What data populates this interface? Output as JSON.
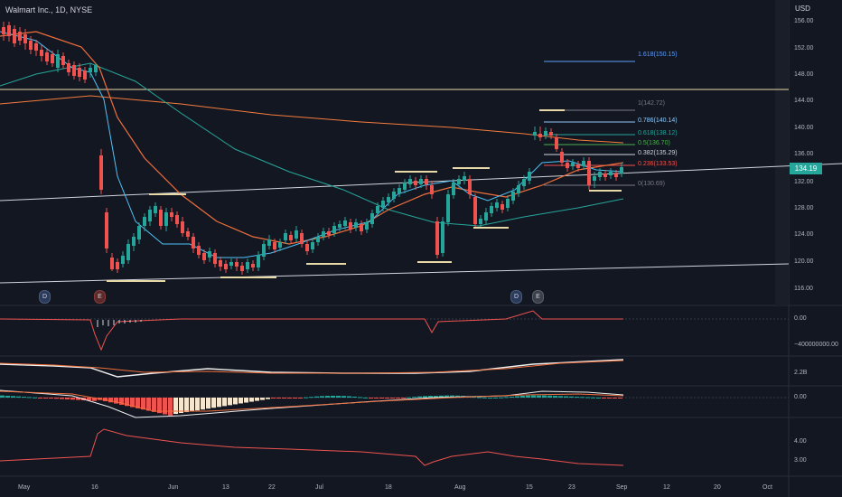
{
  "header": {
    "title": "Walmart Inc., 1D, NYSE",
    "currency": "USD"
  },
  "last_price": "134.19",
  "price_axis": {
    "labels": [
      "156.00",
      "152.00",
      "148.00",
      "144.00",
      "140.00",
      "136.00",
      "132.00",
      "128.00",
      "124.00",
      "120.00",
      "116.00"
    ],
    "values": [
      156,
      152,
      148,
      144,
      140,
      136,
      132,
      128,
      124,
      120,
      116
    ]
  },
  "time_axis": {
    "labels": [
      "May",
      "16",
      "Jun",
      "13",
      "22",
      "Jul",
      "18",
      "Aug",
      "15",
      "23",
      "Sep",
      "12",
      "20",
      "Oct"
    ]
  },
  "fib_levels": [
    {
      "label": "1.618(150.15)",
      "color": "#5b9cf6"
    },
    {
      "label": "1(142.72)",
      "color": "#787b86"
    },
    {
      "label": "0.786(140.14)",
      "color": "#90caf9"
    },
    {
      "label": "0.618(138.12)",
      "color": "#26a69a"
    },
    {
      "label": "0.5(136.70)",
      "color": "#4caf50"
    },
    {
      "label": "0.382(135.29)",
      "color": "#d1d4dc"
    },
    {
      "label": "0.236(133.53)",
      "color": "#ef5350"
    },
    {
      "label": "0(130.69)",
      "color": "#787b86"
    }
  ],
  "events": [
    {
      "label": "D",
      "type": "dividend"
    },
    {
      "label": "E",
      "type": "earnings"
    },
    {
      "label": "D",
      "type": "dividend"
    },
    {
      "label": "E",
      "type": "earnings"
    }
  ],
  "indicators": [
    {
      "name": "volume-oscillator",
      "labels": [
        "0.00",
        "−400000000.00"
      ]
    },
    {
      "name": "obv",
      "labels": [
        "2.2B"
      ]
    },
    {
      "name": "macd",
      "labels": [
        "0.00"
      ]
    },
    {
      "name": "atr",
      "labels": [
        "4.00",
        "3.00"
      ]
    }
  ],
  "colors": {
    "up": "#26a69a",
    "down": "#ef5350",
    "background": "#131722"
  }
}
